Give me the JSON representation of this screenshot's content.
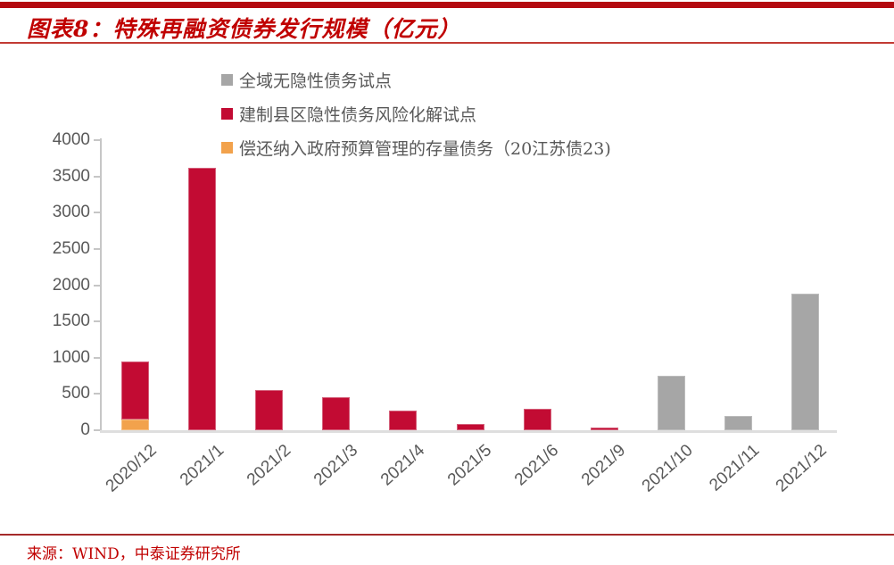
{
  "header": {
    "title": "图表8：特殊再融资债券发行规模（亿元）"
  },
  "footer": {
    "source": "来源：WIND，中泰证券研究所"
  },
  "colors": {
    "accent_red": "#c00000",
    "bar_red": "#c20b33",
    "bar_red_border": "#d4607a",
    "bar_orange": "#f2a24c",
    "bar_orange_border": "#f6bd7f",
    "bar_gray": "#a6a6a6",
    "bar_gray_border": "#bcbcbc",
    "axis_text": "#595959",
    "axis_line": "#c6c6c6",
    "baseline": "#dedede"
  },
  "chart_data": {
    "type": "bar",
    "stacked": true,
    "title": "特殊再融资债券发行规模（亿元）",
    "xlabel": "",
    "ylabel": "",
    "ylim": [
      0,
      4000
    ],
    "yticks": [
      0,
      500,
      1000,
      1500,
      2000,
      2500,
      3000,
      3500,
      4000
    ],
    "grid": false,
    "legend_position": "top-center",
    "categories": [
      "2020/12",
      "2021/1",
      "2021/2",
      "2021/3",
      "2021/4",
      "2021/5",
      "2021/6",
      "2021/9",
      "2021/10",
      "2021/11",
      "2021/12"
    ],
    "series": [
      {
        "name": "全域无隐性债务试点",
        "color_key": "bar_gray",
        "border_key": "bar_gray_border",
        "values": [
          0,
          0,
          0,
          0,
          0,
          0,
          0,
          0,
          750,
          200,
          1880
        ]
      },
      {
        "name": "建制县区隐性债务风险化解试点",
        "color_key": "bar_red",
        "border_key": "bar_red_border",
        "values": [
          800,
          3620,
          550,
          450,
          270,
          85,
          300,
          33,
          0,
          0,
          0
        ]
      },
      {
        "name": "偿还纳入政府预算管理的存量债务（20江苏债23)",
        "color_key": "bar_orange",
        "border_key": "bar_orange_border",
        "values": [
          150,
          0,
          0,
          0,
          0,
          0,
          0,
          0,
          0,
          0,
          0
        ]
      }
    ]
  }
}
